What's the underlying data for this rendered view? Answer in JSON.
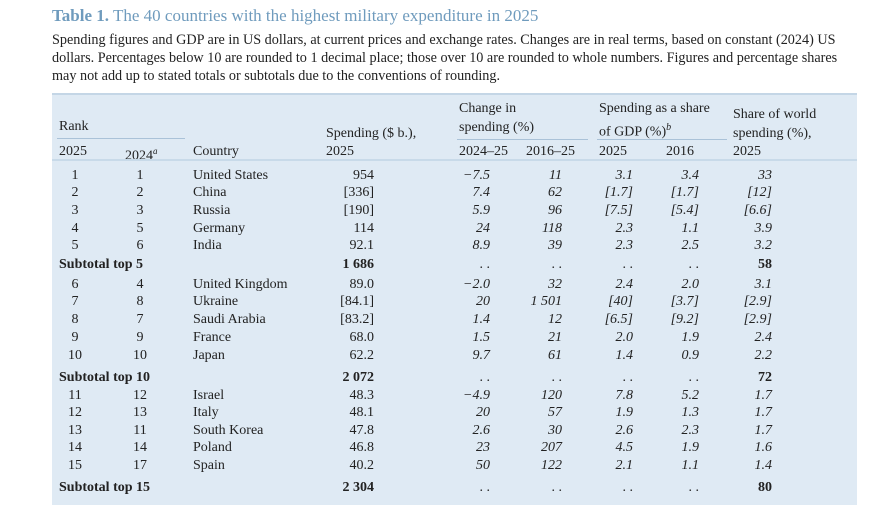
{
  "title": {
    "label": "Table 1.",
    "text": "The 40 countries with the highest military expenditure in 2025"
  },
  "caption": "Spending figures and GDP are in US dollars, at current prices and exchange rates. Changes are in real terms, based on constant (2024) US dollars. Percentages below 10 are rounded to 1 decimal place; those over 10 are rounded to whole numbers. Figures and percentage shares may not add up to stated totals or subtotals due to the conventions of rounding.",
  "colors": {
    "title": "#6f9bbd",
    "table_bg": "#dfeaf4"
  },
  "headers": {
    "rank": "Rank",
    "rank_2025": "2025",
    "rank_2024": "2024",
    "rank_2024_note": "a",
    "country": "Country",
    "spending_1": "Spending ($ b.),",
    "spending_2": "2025",
    "change_1": "Change in",
    "change_2": "spending (%)",
    "change_a": "2024–25",
    "change_b": "2016–25",
    "gdp_1": "Spending as a share",
    "gdp_2": "of GDP (%)",
    "gdp_note": "b",
    "gdp_a": "2025",
    "gdp_b": "2016",
    "world_1": "Share of world",
    "world_2": "spending (%),",
    "world_3": "2025"
  },
  "rows": [
    {
      "r25": "1",
      "r24": "1",
      "country": "United States",
      "spend": "954",
      "ch1": "−7.5",
      "ch2": "11",
      "g25": "3.1",
      "g16": "3.4",
      "world": "33"
    },
    {
      "r25": "2",
      "r24": "2",
      "country": "China",
      "spend": "[336]",
      "ch1": "7.4",
      "ch2": "62",
      "g25": "[1.7]",
      "g16": "[1.7]",
      "world": "[12]"
    },
    {
      "r25": "3",
      "r24": "3",
      "country": "Russia",
      "spend": "[190]",
      "ch1": "5.9",
      "ch2": "96",
      "g25": "[7.5]",
      "g16": "[5.4]",
      "world": "[6.6]"
    },
    {
      "r25": "4",
      "r24": "5",
      "country": "Germany",
      "spend": "114",
      "ch1": "24",
      "ch2": "118",
      "g25": "2.3",
      "g16": "1.1",
      "world": "3.9"
    },
    {
      "r25": "5",
      "r24": "6",
      "country": "India",
      "spend": "92.1",
      "ch1": "8.9",
      "ch2": "39",
      "g25": "2.3",
      "g16": "2.5",
      "world": "3.2"
    },
    {
      "subtotal": "Subtotal top 5",
      "spend": "1 686",
      "ch1": ". .",
      "ch2": ". .",
      "g25": ". .",
      "g16": ". .",
      "world": "58"
    },
    {
      "r25": "6",
      "r24": "4",
      "country": "United Kingdom",
      "spend": "89.0",
      "ch1": "−2.0",
      "ch2": "32",
      "g25": "2.4",
      "g16": "2.0",
      "world": "3.1"
    },
    {
      "r25": "7",
      "r24": "8",
      "country": "Ukraine",
      "spend": "[84.1]",
      "ch1": "20",
      "ch2": "1 501",
      "g25": "[40]",
      "g16": "[3.7]",
      "world": "[2.9]"
    },
    {
      "r25": "8",
      "r24": "7",
      "country": "Saudi Arabia",
      "spend": "[83.2]",
      "ch1": "1.4",
      "ch2": "12",
      "g25": "[6.5]",
      "g16": "[9.2]",
      "world": "[2.9]"
    },
    {
      "r25": "9",
      "r24": "9",
      "country": "France",
      "spend": "68.0",
      "ch1": "1.5",
      "ch2": "21",
      "g25": "2.0",
      "g16": "1.9",
      "world": "2.4"
    },
    {
      "r25": "10",
      "r24": "10",
      "country": "Japan",
      "spend": "62.2",
      "ch1": "9.7",
      "ch2": "61",
      "g25": "1.4",
      "g16": "0.9",
      "world": "2.2"
    },
    {
      "subtotal": "Subtotal top 10",
      "spend": "2 072",
      "ch1": ". .",
      "ch2": ". .",
      "g25": ". .",
      "g16": ". .",
      "world": "72"
    },
    {
      "r25": "11",
      "r24": "12",
      "country": "Israel",
      "spend": "48.3",
      "ch1": "−4.9",
      "ch2": "120",
      "g25": "7.8",
      "g16": "5.2",
      "world": "1.7"
    },
    {
      "r25": "12",
      "r24": "13",
      "country": "Italy",
      "spend": "48.1",
      "ch1": "20",
      "ch2": "57",
      "g25": "1.9",
      "g16": "1.3",
      "world": "1.7"
    },
    {
      "r25": "13",
      "r24": "11",
      "country": "South Korea",
      "spend": "47.8",
      "ch1": "2.6",
      "ch2": "30",
      "g25": "2.6",
      "g16": "2.3",
      "world": "1.7"
    },
    {
      "r25": "14",
      "r24": "14",
      "country": "Poland",
      "spend": "46.8",
      "ch1": "23",
      "ch2": "207",
      "g25": "4.5",
      "g16": "1.9",
      "world": "1.6"
    },
    {
      "r25": "15",
      "r24": "17",
      "country": "Spain",
      "spend": "40.2",
      "ch1": "50",
      "ch2": "122",
      "g25": "2.1",
      "g16": "1.1",
      "world": "1.4"
    },
    {
      "subtotal": "Subtotal top 15",
      "spend": "2 304",
      "ch1": ". .",
      "ch2": ". .",
      "g25": ". .",
      "g16": ". .",
      "world": "80"
    }
  ]
}
